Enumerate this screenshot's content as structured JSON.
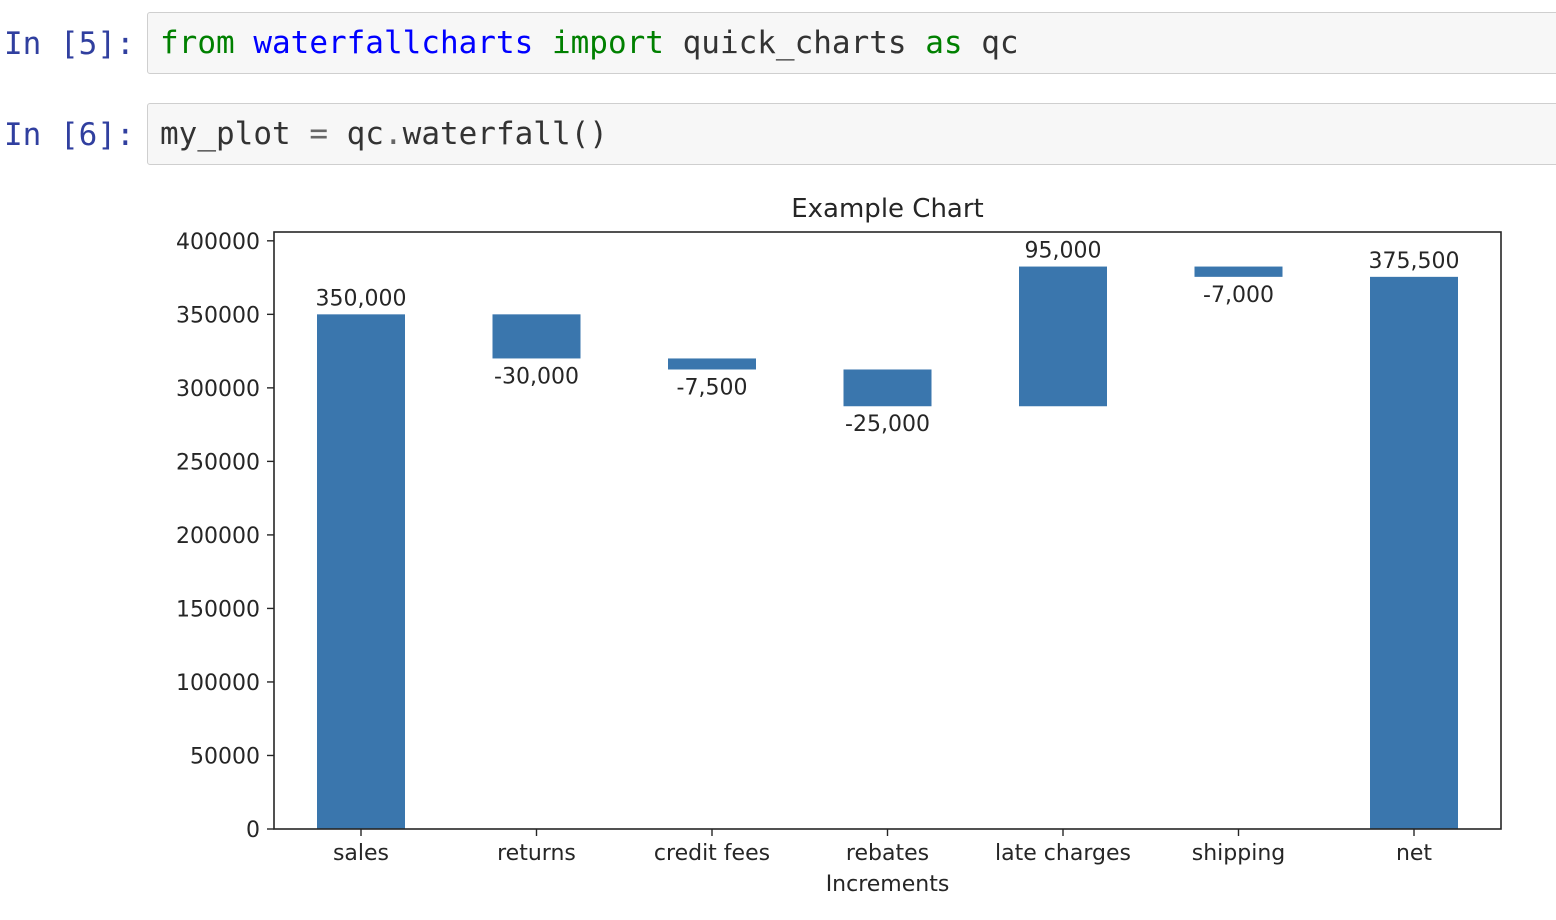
{
  "cells": [
    {
      "prompt": "In [5]:",
      "tokens": [
        {
          "text": "from",
          "cls": "kw"
        },
        {
          "text": " ",
          "cls": ""
        },
        {
          "text": "waterfallcharts",
          "cls": "mod"
        },
        {
          "text": " ",
          "cls": ""
        },
        {
          "text": "import",
          "cls": "kw"
        },
        {
          "text": " quick_charts ",
          "cls": ""
        },
        {
          "text": "as",
          "cls": "kw"
        },
        {
          "text": " qc",
          "cls": ""
        }
      ]
    },
    {
      "prompt": "In [6]:",
      "tokens": [
        {
          "text": "my_plot ",
          "cls": ""
        },
        {
          "text": "=",
          "cls": "op"
        },
        {
          "text": " qc",
          "cls": ""
        },
        {
          "text": ".",
          "cls": "op"
        },
        {
          "text": "waterfall()",
          "cls": ""
        }
      ]
    }
  ],
  "chart_data": {
    "type": "bar",
    "title": "Example Chart",
    "xlabel": "Increments",
    "ylabel": "",
    "categories": [
      "sales",
      "returns",
      "credit fees",
      "rebates",
      "late charges",
      "shipping",
      "net"
    ],
    "bottoms": [
      0,
      320000,
      312500,
      287500,
      287500,
      375500,
      0
    ],
    "tops": [
      350000,
      350000,
      320000,
      312500,
      382500,
      382500,
      375500
    ],
    "data_labels": [
      "350,000",
      "-30,000",
      "-7,500",
      "-25,000",
      "95,000",
      "-7,000",
      "375,500"
    ],
    "label_position": [
      "above",
      "below",
      "below",
      "below",
      "above",
      "below",
      "above"
    ],
    "ylim": [
      0,
      406000
    ],
    "yticks": [
      0,
      50000,
      100000,
      150000,
      200000,
      250000,
      300000,
      350000,
      400000
    ],
    "ytick_labels": [
      "0",
      "50000",
      "100000",
      "150000",
      "200000",
      "250000",
      "300000",
      "350000",
      "400000"
    ],
    "bar_color": "#3a76ad",
    "grid": false,
    "legend": false
  }
}
